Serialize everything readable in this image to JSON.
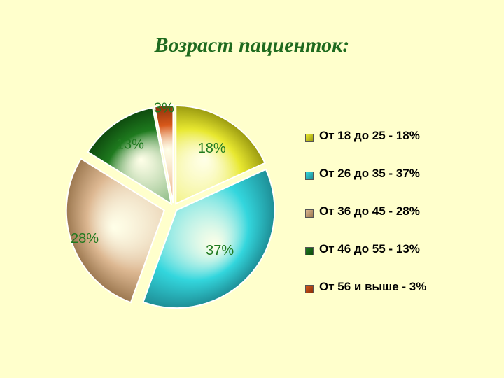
{
  "chart_data": {
    "type": "pie",
    "title": "Возраст пациенток:",
    "slices": [
      {
        "label": "От 18 до 25 - 18%",
        "value": 18,
        "data_label": "18%",
        "color": "#E8E830",
        "shade": "#9A9A10"
      },
      {
        "label": "От 26 до 35 - 37%",
        "value": 37,
        "data_label": "37%",
        "color": "#33D6DD",
        "shade": "#1E8E96"
      },
      {
        "label": "От 36 до 45 - 28%",
        "value": 28,
        "data_label": "28%",
        "color": "#DDB892",
        "shade": "#9C7850"
      },
      {
        "label": "От 46 до 55 - 13%",
        "value": 13,
        "data_label": "13%",
        "color": "#1E7A1E",
        "shade": "#0E4A0E"
      },
      {
        "label": "От 56 и выше - 3%",
        "value": 3,
        "data_label": "3%",
        "color": "#D8581A",
        "shade": "#8A300A"
      }
    ],
    "legend_position": "right",
    "data_label_color": "#1F7A1F"
  }
}
